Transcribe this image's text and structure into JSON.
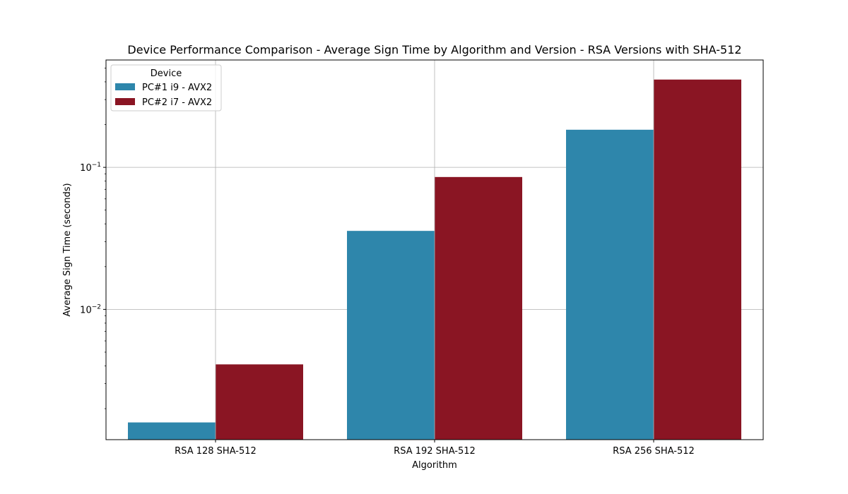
{
  "chart_data": {
    "type": "bar",
    "title": "Device Performance Comparison - Average Sign Time by Algorithm and Version - RSA Versions with SHA-512",
    "xlabel": "Algorithm",
    "ylabel": "Average Sign Time (seconds)",
    "yscale": "log",
    "ylim": [
      0.00121,
      0.57
    ],
    "yticks": [
      {
        "value": 0.01,
        "base": "10",
        "exp": "−2"
      },
      {
        "value": 0.1,
        "base": "10",
        "exp": "−1"
      }
    ],
    "grid": true,
    "categories": [
      "RSA 128 SHA-512",
      "RSA 192 SHA-512",
      "RSA 256 SHA-512"
    ],
    "legend": {
      "title": "Device",
      "position": "top-left"
    },
    "series": [
      {
        "name": "PC#1 i9 - AVX2",
        "color": "#2e86ab",
        "values": [
          0.0016,
          0.0357,
          0.184
        ]
      },
      {
        "name": "PC#2 i7 - AVX2",
        "color": "#8a1523",
        "values": [
          0.0041,
          0.0855,
          0.415
        ]
      }
    ]
  }
}
